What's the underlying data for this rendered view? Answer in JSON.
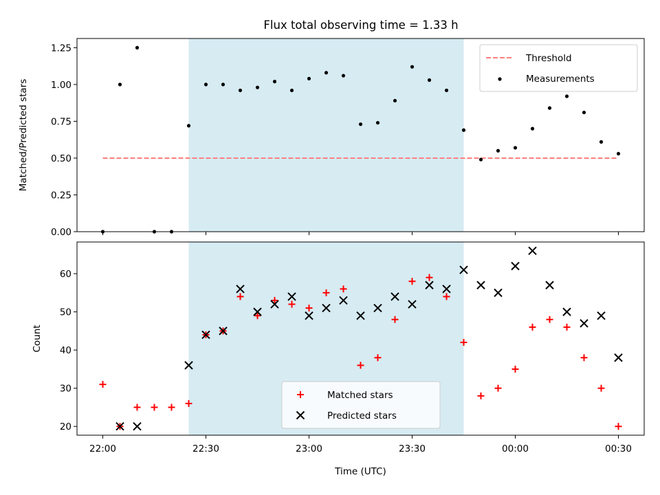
{
  "figure": {
    "title": "Flux total observing time = 1.33 h"
  },
  "chart_data": [
    {
      "type": "scatter",
      "panel": "top",
      "title": "Flux total observing time = 1.33 h",
      "xlabel": "",
      "ylabel": "Matched/Predicted stars",
      "x_unit": "minutes after 22:00 UTC",
      "xlim": [
        -7.5,
        157.5
      ],
      "ylim": [
        0.0,
        1.3125
      ],
      "yticks": [
        0.0,
        0.25,
        0.5,
        0.75,
        1.0,
        1.25
      ],
      "ytick_labels": [
        "0.00",
        "0.25",
        "0.50",
        "0.75",
        "1.00",
        "1.25"
      ],
      "xticks": [
        0,
        30,
        60,
        90,
        120,
        150
      ],
      "xtick_labels_visible": false,
      "shaded_span": {
        "x_start": 25,
        "x_end": 105,
        "color": "#add8e6"
      },
      "threshold": {
        "name": "Threshold",
        "y": 0.5,
        "x_start": 0,
        "x_end": 150,
        "color": "#ff7f7f",
        "style": "dashed"
      },
      "series": [
        {
          "name": "Measurements",
          "color": "#000000",
          "marker": "dot",
          "x": [
            0,
            5,
            10,
            15,
            20,
            25,
            30,
            35,
            40,
            45,
            50,
            55,
            60,
            65,
            70,
            75,
            80,
            85,
            90,
            95,
            100,
            105,
            110,
            115,
            120,
            125,
            130,
            135,
            140,
            145,
            150
          ],
          "y": [
            0.0,
            1.0,
            1.25,
            0.0,
            0.0,
            0.72,
            1.0,
            1.0,
            0.96,
            0.98,
            1.02,
            0.96,
            1.04,
            1.08,
            1.06,
            0.73,
            0.74,
            0.89,
            1.12,
            1.03,
            0.96,
            0.69,
            0.49,
            0.55,
            0.57,
            0.7,
            0.84,
            0.92,
            0.81,
            0.61,
            0.53
          ]
        }
      ],
      "legend": {
        "placement": "top-right",
        "entries": [
          "Threshold",
          "Measurements"
        ]
      },
      "grid": false
    },
    {
      "type": "scatter",
      "panel": "bottom",
      "xlabel": "Time (UTC)",
      "ylabel": "Count",
      "x_unit": "minutes after 22:00 UTC",
      "xlim": [
        -7.5,
        157.5
      ],
      "ylim": [
        17.7,
        68.3
      ],
      "yticks": [
        20,
        30,
        40,
        50,
        60
      ],
      "ytick_labels": [
        "20",
        "30",
        "40",
        "50",
        "60"
      ],
      "xticks": [
        0,
        30,
        60,
        90,
        120,
        150
      ],
      "xtick_labels": [
        "22:00",
        "22:30",
        "23:00",
        "23:30",
        "00:00",
        "00:30"
      ],
      "shaded_span": {
        "x_start": 25,
        "x_end": 105,
        "color": "#add8e6"
      },
      "series": [
        {
          "name": "Matched stars",
          "color": "#ff0000",
          "marker": "plus",
          "x": [
            0,
            5,
            10,
            15,
            20,
            25,
            30,
            35,
            40,
            45,
            50,
            55,
            60,
            65,
            70,
            75,
            80,
            85,
            90,
            95,
            100,
            105,
            110,
            115,
            120,
            125,
            130,
            135,
            140,
            145,
            150
          ],
          "y": [
            31,
            20,
            25,
            25,
            25,
            26,
            44,
            45,
            54,
            49,
            53,
            52,
            51,
            55,
            56,
            36,
            38,
            48,
            58,
            59,
            54,
            42,
            28,
            30,
            35,
            46,
            48,
            46,
            38,
            30,
            20
          ]
        },
        {
          "name": "Predicted stars",
          "color": "#000000",
          "marker": "x",
          "x": [
            5,
            10,
            25,
            30,
            35,
            40,
            45,
            50,
            55,
            60,
            65,
            70,
            75,
            80,
            85,
            90,
            95,
            100,
            105,
            110,
            115,
            120,
            125,
            130,
            135,
            140,
            145,
            150
          ],
          "y": [
            20,
            20,
            36,
            44,
            45,
            56,
            50,
            52,
            54,
            49,
            51,
            53,
            49,
            51,
            54,
            52,
            57,
            56,
            61,
            57,
            55,
            62,
            66,
            57,
            50,
            47,
            49,
            38
          ]
        }
      ],
      "legend": {
        "placement": "lower-center",
        "entries": [
          "Matched stars",
          "Predicted stars"
        ]
      },
      "grid": false
    }
  ]
}
